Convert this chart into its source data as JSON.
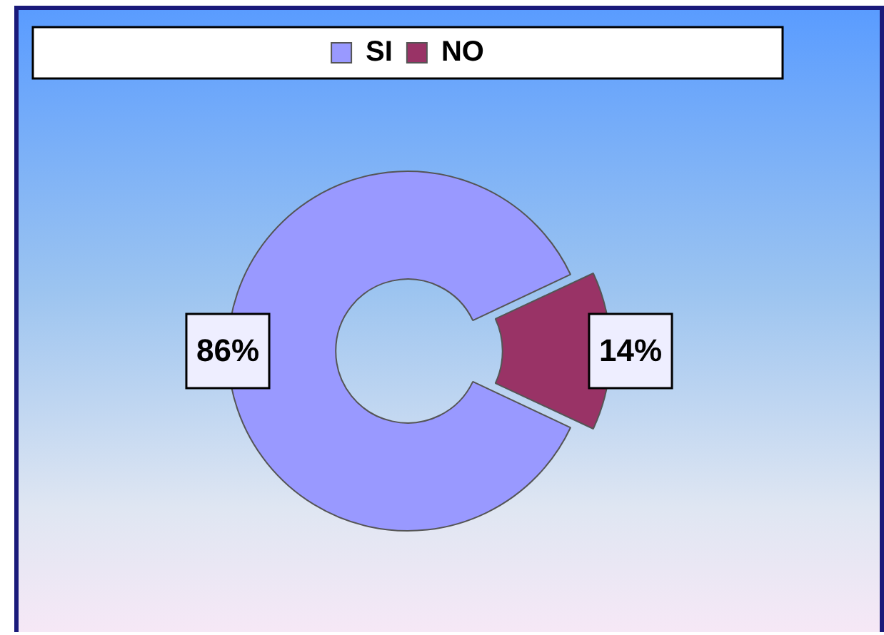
{
  "chart_data": {
    "type": "donut",
    "categories": [
      "SI",
      "NO"
    ],
    "values": [
      86,
      14
    ],
    "colors": [
      "#9999ff",
      "#993366"
    ],
    "value_labels": [
      "86%",
      "14%"
    ],
    "legend": "top"
  }
}
